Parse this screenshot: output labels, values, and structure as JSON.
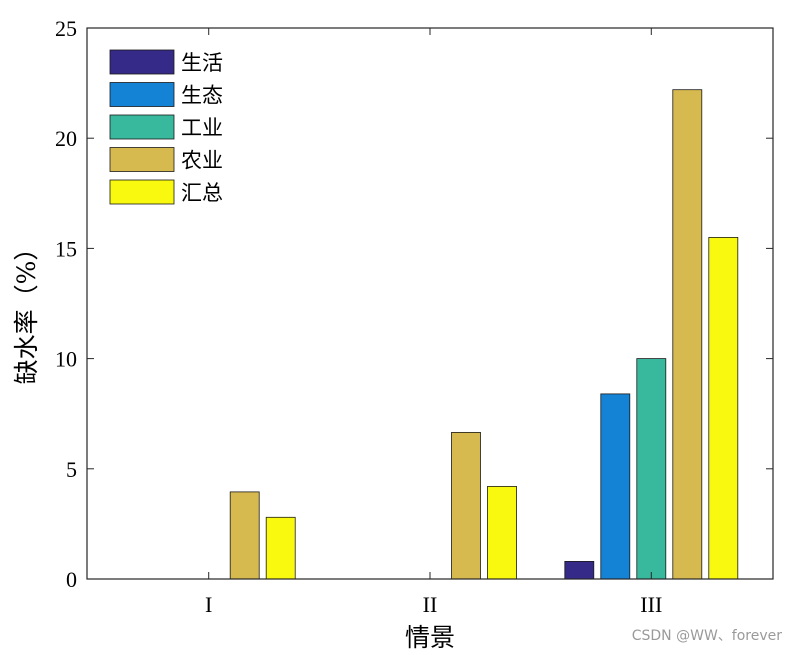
{
  "chart_data": {
    "type": "bar",
    "title": "",
    "xlabel": "情景",
    "ylabel": "缺水率（%）",
    "categories": [
      "I",
      "II",
      "III"
    ],
    "ylim": [
      0,
      25
    ],
    "yticks": [
      0,
      5,
      10,
      15,
      20,
      25
    ],
    "grid": false,
    "legend_position": "top-left",
    "series": [
      {
        "name": "生活",
        "color": "#352a87",
        "values": [
          0,
          0,
          0.8
        ]
      },
      {
        "name": "生态",
        "color": "#1483d5",
        "values": [
          0,
          0,
          8.4
        ]
      },
      {
        "name": "工业",
        "color": "#38b99e",
        "values": [
          0,
          0,
          10.0
        ]
      },
      {
        "name": "农业",
        "color": "#d7ba4f",
        "values": [
          3.95,
          6.65,
          22.2
        ]
      },
      {
        "name": "汇总",
        "color": "#f9f90f",
        "values": [
          2.8,
          4.2,
          15.5
        ]
      }
    ]
  },
  "watermark": "CSDN @WW、forever"
}
